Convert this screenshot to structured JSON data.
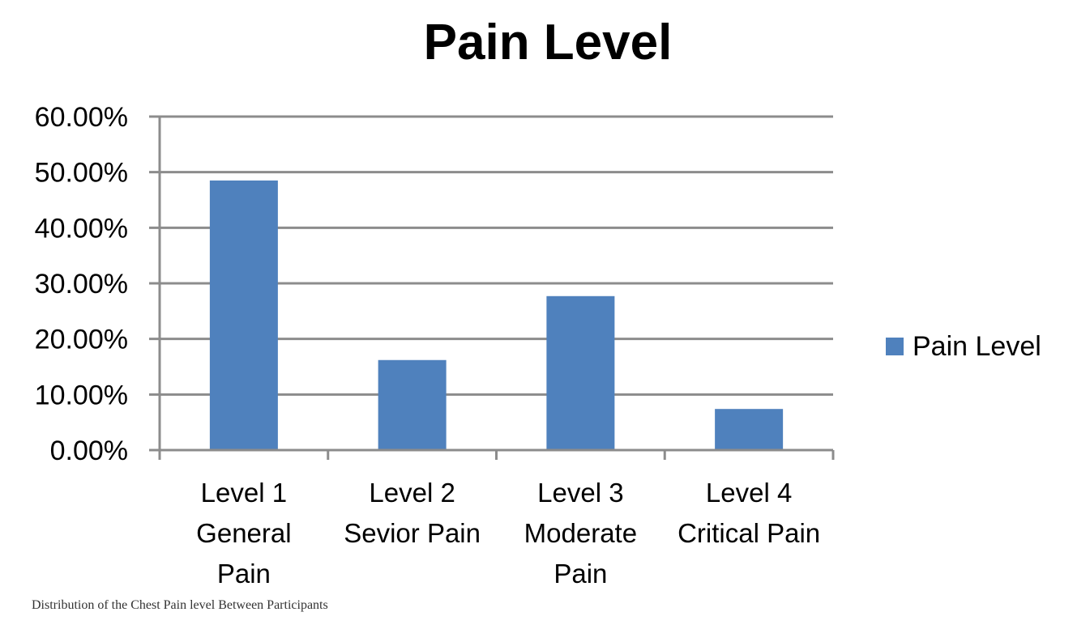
{
  "caption": "Distribution of the Chest Pain level Between Participants",
  "chart_data": {
    "type": "bar",
    "title": "Pain Level",
    "categories": [
      [
        "Level 1",
        "General",
        "Pain"
      ],
      [
        "Level 2",
        "Sevior Pain"
      ],
      [
        "Level 3",
        "Moderate",
        "Pain"
      ],
      [
        "Level 4",
        "Critical Pain"
      ]
    ],
    "series": [
      {
        "name": "Pain Level",
        "values": [
          48.5,
          16.2,
          27.7,
          7.4
        ],
        "color": "#4f81bd"
      }
    ],
    "y_unit": "%",
    "ylim": [
      0,
      60
    ],
    "y_ticks": [
      "0.00%",
      "10.00%",
      "20.00%",
      "30.00%",
      "40.00%",
      "50.00%",
      "60.00%"
    ],
    "y_tick_values": [
      0,
      10,
      20,
      30,
      40,
      50,
      60
    ],
    "grid": true,
    "legend_position": "right"
  }
}
